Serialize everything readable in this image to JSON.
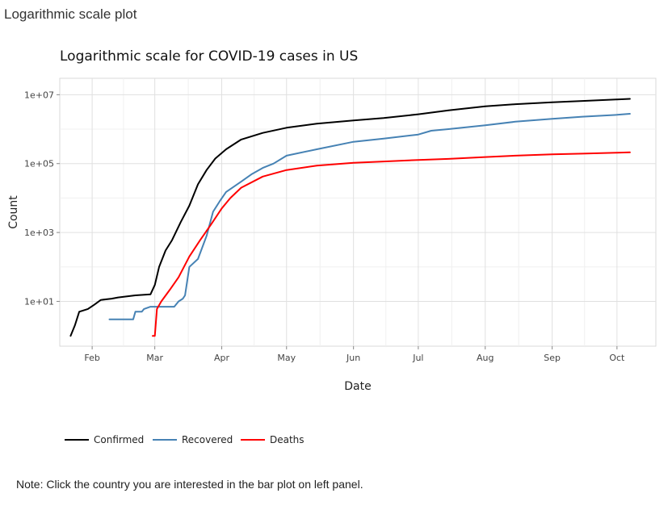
{
  "panel": {
    "title": "Logarithmic scale plot",
    "note": "Note: Click the country you are interested in the bar plot on left panel."
  },
  "chart_data": {
    "type": "line",
    "title": "Logarithmic scale for COVID-19 cases in US",
    "xlabel": "Date",
    "ylabel": "Count",
    "y_scale": "log10",
    "ylim": [
      0.5,
      30000000
    ],
    "xlim": [
      "2020-01-17",
      "2020-10-19"
    ],
    "x_ticks": [
      {
        "date": "2020-02-01",
        "label": "Feb"
      },
      {
        "date": "2020-03-01",
        "label": "Mar"
      },
      {
        "date": "2020-04-01",
        "label": "Apr"
      },
      {
        "date": "2020-05-01",
        "label": "May"
      },
      {
        "date": "2020-06-01",
        "label": "Jun"
      },
      {
        "date": "2020-07-01",
        "label": "Jul"
      },
      {
        "date": "2020-08-01",
        "label": "Aug"
      },
      {
        "date": "2020-09-01",
        "label": "Sep"
      },
      {
        "date": "2020-10-01",
        "label": "Oct"
      }
    ],
    "y_ticks": [
      {
        "value": 10,
        "label": "1e+01"
      },
      {
        "value": 1000,
        "label": "1e+03"
      },
      {
        "value": 100000,
        "label": "1e+05"
      },
      {
        "value": 10000000,
        "label": "1e+07"
      }
    ],
    "grid": true,
    "legend_position": "bottom",
    "series": [
      {
        "name": "Confirmed",
        "color": "#000000",
        "points": [
          [
            "2020-01-22",
            1
          ],
          [
            "2020-01-24",
            2
          ],
          [
            "2020-01-26",
            5
          ],
          [
            "2020-01-30",
            6
          ],
          [
            "2020-02-02",
            8
          ],
          [
            "2020-02-05",
            11
          ],
          [
            "2020-02-10",
            12
          ],
          [
            "2020-02-13",
            13
          ],
          [
            "2020-02-21",
            15
          ],
          [
            "2020-02-28",
            16
          ],
          [
            "2020-03-01",
            30
          ],
          [
            "2020-03-03",
            100
          ],
          [
            "2020-03-06",
            300
          ],
          [
            "2020-03-09",
            600
          ],
          [
            "2020-03-13",
            2000
          ],
          [
            "2020-03-17",
            6000
          ],
          [
            "2020-03-21",
            25000
          ],
          [
            "2020-03-25",
            65000
          ],
          [
            "2020-03-29",
            140000
          ],
          [
            "2020-04-03",
            260000
          ],
          [
            "2020-04-10",
            500000
          ],
          [
            "2020-04-20",
            780000
          ],
          [
            "2020-05-01",
            1100000
          ],
          [
            "2020-05-15",
            1450000
          ],
          [
            "2020-06-01",
            1800000
          ],
          [
            "2020-06-15",
            2100000
          ],
          [
            "2020-07-01",
            2700000
          ],
          [
            "2020-07-15",
            3500000
          ],
          [
            "2020-08-01",
            4600000
          ],
          [
            "2020-08-15",
            5300000
          ],
          [
            "2020-09-01",
            6000000
          ],
          [
            "2020-09-15",
            6600000
          ],
          [
            "2020-10-01",
            7300000
          ],
          [
            "2020-10-07",
            7600000
          ]
        ]
      },
      {
        "name": "Recovered",
        "color": "#4682b4",
        "points": [
          [
            "2020-02-09",
            3
          ],
          [
            "2020-02-20",
            3
          ],
          [
            "2020-02-21",
            5
          ],
          [
            "2020-02-24",
            5
          ],
          [
            "2020-02-25",
            6
          ],
          [
            "2020-02-28",
            7
          ],
          [
            "2020-03-10",
            7
          ],
          [
            "2020-03-12",
            10
          ],
          [
            "2020-03-14",
            12
          ],
          [
            "2020-03-15",
            15
          ],
          [
            "2020-03-17",
            100
          ],
          [
            "2020-03-21",
            170
          ],
          [
            "2020-03-25",
            800
          ],
          [
            "2020-03-28",
            4000
          ],
          [
            "2020-03-31",
            8000
          ],
          [
            "2020-04-03",
            15000
          ],
          [
            "2020-04-10",
            30000
          ],
          [
            "2020-04-15",
            50000
          ],
          [
            "2020-04-20",
            75000
          ],
          [
            "2020-04-25",
            100000
          ],
          [
            "2020-05-01",
            170000
          ],
          [
            "2020-05-15",
            260000
          ],
          [
            "2020-06-01",
            430000
          ],
          [
            "2020-06-15",
            530000
          ],
          [
            "2020-07-01",
            700000
          ],
          [
            "2020-07-07",
            900000
          ],
          [
            "2020-07-15",
            1000000
          ],
          [
            "2020-08-01",
            1300000
          ],
          [
            "2020-08-15",
            1650000
          ],
          [
            "2020-09-01",
            2000000
          ],
          [
            "2020-09-15",
            2300000
          ],
          [
            "2020-10-01",
            2600000
          ],
          [
            "2020-10-07",
            2800000
          ]
        ]
      },
      {
        "name": "Deaths",
        "color": "#ff0000",
        "points": [
          [
            "2020-02-29",
            1
          ],
          [
            "2020-03-01",
            1
          ],
          [
            "2020-03-02",
            6
          ],
          [
            "2020-03-04",
            10
          ],
          [
            "2020-03-08",
            22
          ],
          [
            "2020-03-12",
            50
          ],
          [
            "2020-03-17",
            200
          ],
          [
            "2020-03-22",
            600
          ],
          [
            "2020-03-27",
            1700
          ],
          [
            "2020-04-01",
            5000
          ],
          [
            "2020-04-05",
            10000
          ],
          [
            "2020-04-10",
            20000
          ],
          [
            "2020-04-20",
            42000
          ],
          [
            "2020-05-01",
            65000
          ],
          [
            "2020-05-15",
            87000
          ],
          [
            "2020-06-01",
            105000
          ],
          [
            "2020-06-15",
            115000
          ],
          [
            "2020-07-01",
            128000
          ],
          [
            "2020-07-15",
            137000
          ],
          [
            "2020-08-01",
            155000
          ],
          [
            "2020-08-15",
            170000
          ],
          [
            "2020-09-01",
            185000
          ],
          [
            "2020-09-15",
            195000
          ],
          [
            "2020-10-01",
            207000
          ],
          [
            "2020-10-07",
            212000
          ]
        ]
      }
    ]
  }
}
